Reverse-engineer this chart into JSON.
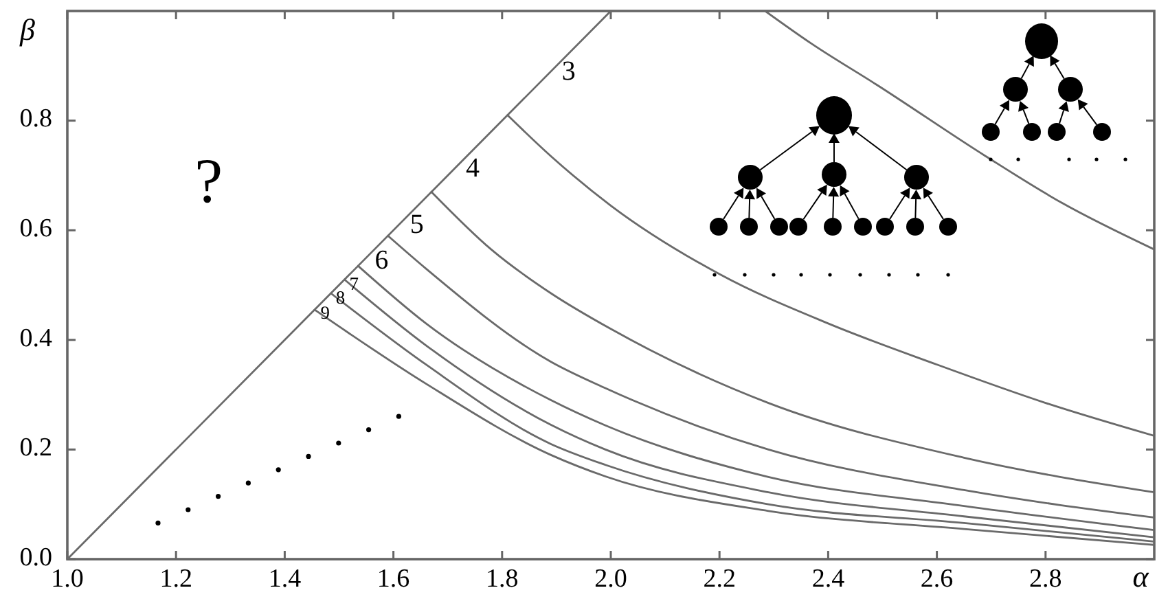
{
  "chart_data": {
    "type": "line",
    "xlabel": "α",
    "ylabel": "β",
    "xlim": [
      1,
      3
    ],
    "ylim": [
      0,
      1
    ],
    "xticks": [
      {
        "value": 1,
        "label": "1.0"
      },
      1.2,
      1.4,
      1.6,
      1.8,
      {
        "value": 2,
        "label": "2.0"
      },
      2.2,
      2.4,
      2.6,
      2.8
    ],
    "yticks": [
      {
        "value": 0,
        "label": "0.0"
      },
      0.2,
      0.4,
      0.6,
      0.8
    ],
    "annotations": [
      "?",
      "3",
      "4",
      "5",
      "6",
      "7",
      "8",
      "9"
    ],
    "series": [
      {
        "color": "#6a6a6a",
        "x": [
          1,
          2
        ],
        "values": [
          0,
          1
        ]
      },
      {
        "color": "#6a6a6a",
        "x": [
          2.284,
          2.37,
          2.49,
          2.69,
          2.83,
          3.0
        ],
        "values": [
          1.0,
          0.94,
          0.865,
          0.735,
          0.65,
          0.565
        ]
      },
      {
        "color": "#6a6a6a",
        "x": [
          1.81,
          1.89,
          2.0,
          2.2,
          2.4,
          2.6,
          2.8,
          3.0
        ],
        "values": [
          0.81,
          0.735,
          0.645,
          0.52,
          0.43,
          0.355,
          0.285,
          0.225
        ]
      },
      {
        "color": "#6a6a6a",
        "x": [
          1.67,
          1.78,
          1.89,
          2.0,
          2.29,
          2.65,
          3.0
        ],
        "values": [
          0.67,
          0.565,
          0.485,
          0.42,
          0.285,
          0.185,
          0.122
        ]
      },
      {
        "color": "#6a6a6a",
        "x": [
          1.59,
          1.66,
          1.89,
          1.99,
          2.04,
          2.29,
          2.65,
          3.0
        ],
        "values": [
          0.59,
          0.53,
          0.36,
          0.312,
          0.29,
          0.2,
          0.126,
          0.076
        ]
      },
      {
        "color": "#6a6a6a",
        "x": [
          1.535,
          1.66,
          1.89,
          1.99,
          2.29,
          2.65,
          3.0
        ],
        "values": [
          0.535,
          0.43,
          0.29,
          0.244,
          0.15,
          0.097,
          0.053
        ]
      },
      {
        "color": "#6a6a6a",
        "x": [
          1.51,
          1.66,
          1.89,
          1.99,
          2.29,
          2.65,
          3.0
        ],
        "values": [
          0.51,
          0.39,
          0.245,
          0.2,
          0.122,
          0.078,
          0.04
        ]
      },
      {
        "color": "#6a6a6a",
        "x": [
          1.485,
          1.66,
          1.89,
          1.99,
          2.29,
          2.65,
          3.0
        ],
        "values": [
          0.485,
          0.355,
          0.21,
          0.172,
          0.1,
          0.066,
          0.032
        ]
      },
      {
        "color": "#6a6a6a",
        "x": [
          1.455,
          1.66,
          1.89,
          1.99,
          2.29,
          2.65,
          3.0
        ],
        "values": [
          0.455,
          0.32,
          0.19,
          0.151,
          0.088,
          0.055,
          0.026
        ]
      }
    ]
  }
}
